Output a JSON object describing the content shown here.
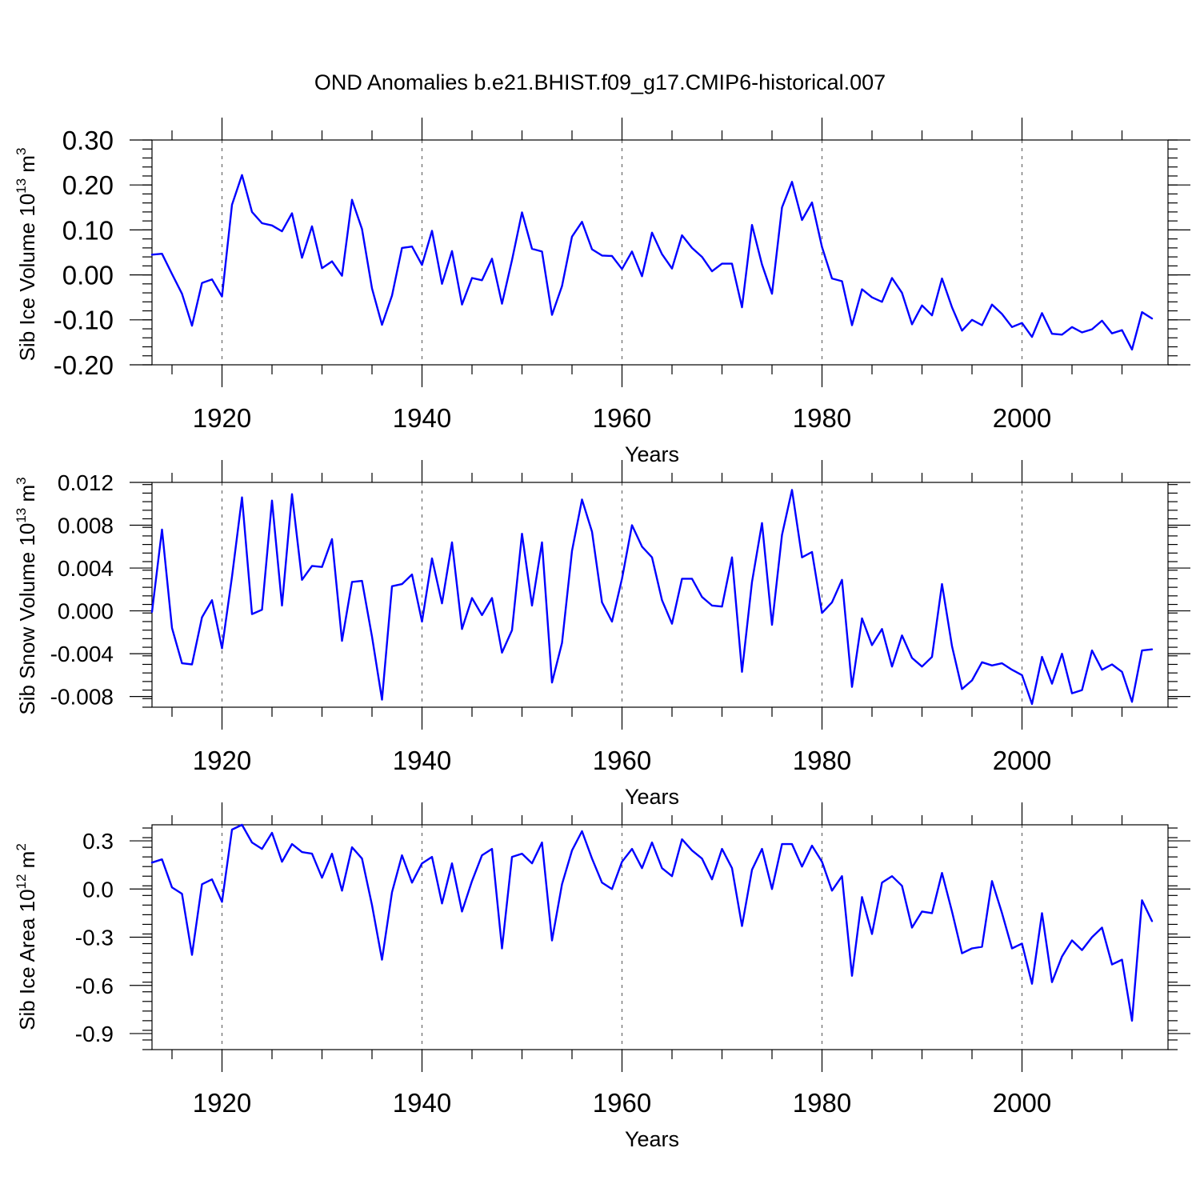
{
  "title": "OND Anomalies b.e21.BHIST.f09_g17.CMIP6-historical.007",
  "line_color": "#0000ff",
  "chart_data": [
    {
      "type": "line",
      "title": "",
      "xlabel": "Years",
      "ylabel": "Sib Ice Volume 10",
      "ylabel_exp": "13",
      "ylabel_unit": " m",
      "ylabel_unit_exp": "3",
      "xlim": [
        1913,
        2014.6
      ],
      "ylim": [
        -0.2,
        0.3
      ],
      "xticks": [
        1920,
        1940,
        1960,
        1980,
        2000
      ],
      "xtick_labels": [
        "1920",
        "1940",
        "1960",
        "1980",
        "2000"
      ],
      "yticks": [
        -0.2,
        -0.1,
        0.0,
        0.1,
        0.2,
        0.3
      ],
      "ytick_labels": [
        "-0.20",
        "-0.10",
        "0.00",
        "0.10",
        "0.20",
        "0.30"
      ],
      "x_start": 1913,
      "values": [
        0.045,
        0.047,
        0.002,
        -0.042,
        -0.113,
        -0.018,
        -0.01,
        -0.048,
        0.156,
        0.222,
        0.14,
        0.115,
        0.11,
        0.097,
        0.137,
        0.038,
        0.108,
        0.015,
        0.03,
        -0.002,
        0.167,
        0.102,
        -0.03,
        -0.111,
        -0.046,
        0.06,
        0.063,
        0.022,
        0.098,
        -0.02,
        0.053,
        -0.066,
        -0.007,
        -0.012,
        0.036,
        -0.064,
        0.033,
        0.139,
        0.058,
        0.052,
        -0.089,
        -0.025,
        0.085,
        0.118,
        0.057,
        0.043,
        0.042,
        0.013,
        0.052,
        -0.003,
        0.094,
        0.046,
        0.014,
        0.088,
        0.06,
        0.04,
        0.008,
        0.025,
        0.025,
        -0.072,
        0.111,
        0.023,
        -0.042,
        0.15,
        0.207,
        0.122,
        0.161,
        0.062,
        -0.008,
        -0.014,
        -0.112,
        -0.032,
        -0.05,
        -0.06,
        -0.007,
        -0.04,
        -0.11,
        -0.068,
        -0.09,
        -0.008,
        -0.072,
        -0.124,
        -0.1,
        -0.112,
        -0.066,
        -0.087,
        -0.116,
        -0.107,
        -0.138,
        -0.085,
        -0.131,
        -0.133,
        -0.116,
        -0.128,
        -0.121,
        -0.102,
        -0.13,
        -0.123,
        -0.166,
        -0.083,
        -0.097
      ]
    },
    {
      "type": "line",
      "title": "",
      "xlabel": "Years",
      "ylabel": "Sib Snow Volume 10",
      "ylabel_exp": "13",
      "ylabel_unit": " m",
      "ylabel_unit_exp": "3",
      "xlim": [
        1913,
        2014.6
      ],
      "ylim": [
        -0.009,
        0.012
      ],
      "xticks": [
        1920,
        1940,
        1960,
        1980,
        2000
      ],
      "xtick_labels": [
        "1920",
        "1940",
        "1960",
        "1980",
        "2000"
      ],
      "yticks": [
        -0.008,
        -0.004,
        0.0,
        0.004,
        0.008,
        0.012
      ],
      "ytick_labels": [
        "-0.008",
        "-0.004",
        "0.000",
        "0.004",
        "0.008",
        "0.012"
      ],
      "x_start": 1913,
      "values": [
        -0.0001,
        0.0076,
        -0.0016,
        -0.0049,
        -0.005,
        -0.0006,
        0.001,
        -0.0035,
        0.0032,
        0.0106,
        -0.0003,
        0.0001,
        0.0103,
        0.0005,
        0.0109,
        0.0029,
        0.0042,
        0.0041,
        0.0067,
        -0.0028,
        0.0027,
        0.0028,
        -0.0024,
        -0.0083,
        0.0023,
        0.0025,
        0.0034,
        -0.001,
        0.0049,
        0.0007,
        0.0064,
        -0.0017,
        0.0012,
        -0.0004,
        0.0012,
        -0.0039,
        -0.0018,
        0.0072,
        0.0005,
        0.0064,
        -0.0067,
        -0.003,
        0.0056,
        0.0104,
        0.0074,
        0.0008,
        -0.001,
        0.003,
        0.008,
        0.006,
        0.005,
        0.001,
        -0.0012,
        0.003,
        0.003,
        0.0013,
        0.0005,
        0.0004,
        0.005,
        -0.0057,
        0.0027,
        0.0082,
        -0.0013,
        0.0071,
        0.0113,
        0.005,
        0.0055,
        -0.0002,
        0.0008,
        0.0029,
        -0.0071,
        -0.0007,
        -0.0032,
        -0.0017,
        -0.0052,
        -0.0023,
        -0.0044,
        -0.0052,
        -0.0043,
        0.0025,
        -0.0033,
        -0.0073,
        -0.0065,
        -0.0048,
        -0.0051,
        -0.0049,
        -0.0055,
        -0.006,
        -0.0087,
        -0.0043,
        -0.0068,
        -0.004,
        -0.0077,
        -0.0074,
        -0.0037,
        -0.0055,
        -0.005,
        -0.0057,
        -0.0085,
        -0.0037,
        -0.0036
      ]
    },
    {
      "type": "line",
      "title": "",
      "xlabel": "Years",
      "ylabel": "Sib Ice Area 10",
      "ylabel_exp": "12",
      "ylabel_unit": " m",
      "ylabel_unit_exp": "2",
      "xlim": [
        1913,
        2014.6
      ],
      "ylim": [
        -1.0,
        0.4
      ],
      "xticks": [
        1920,
        1940,
        1960,
        1980,
        2000
      ],
      "xtick_labels": [
        "1920",
        "1940",
        "1960",
        "1980",
        "2000"
      ],
      "yticks": [
        -0.9,
        -0.6,
        -0.3,
        0.0,
        0.3
      ],
      "ytick_labels": [
        "-0.9",
        "-0.6",
        "-0.3",
        "0.0",
        "0.3"
      ],
      "x_start": 1913,
      "values": [
        0.165,
        0.185,
        0.01,
        -0.03,
        -0.41,
        0.03,
        0.06,
        -0.08,
        0.37,
        0.4,
        0.29,
        0.25,
        0.35,
        0.17,
        0.28,
        0.23,
        0.22,
        0.07,
        0.22,
        -0.01,
        0.26,
        0.19,
        -0.1,
        -0.44,
        -0.02,
        0.21,
        0.04,
        0.16,
        0.2,
        -0.09,
        0.16,
        -0.14,
        0.05,
        0.21,
        0.25,
        -0.37,
        0.2,
        0.22,
        0.16,
        0.29,
        -0.32,
        0.03,
        0.24,
        0.36,
        0.19,
        0.04,
        0.0,
        0.17,
        0.25,
        0.13,
        0.29,
        0.13,
        0.08,
        0.31,
        0.24,
        0.19,
        0.06,
        0.25,
        0.13,
        -0.23,
        0.12,
        0.25,
        0.0,
        0.28,
        0.28,
        0.14,
        0.27,
        0.17,
        -0.01,
        0.08,
        -0.54,
        -0.05,
        -0.28,
        0.04,
        0.08,
        0.02,
        -0.24,
        -0.14,
        -0.15,
        0.1,
        -0.14,
        -0.4,
        -0.37,
        -0.36,
        0.05,
        -0.15,
        -0.37,
        -0.34,
        -0.59,
        -0.15,
        -0.58,
        -0.42,
        -0.32,
        -0.38,
        -0.3,
        -0.24,
        -0.47,
        -0.44,
        -0.82,
        -0.07,
        -0.2
      ]
    }
  ]
}
